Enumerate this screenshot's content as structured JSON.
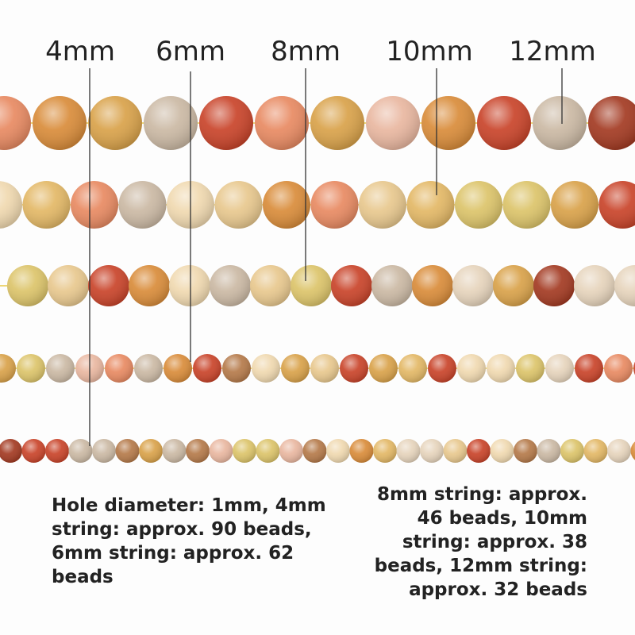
{
  "labels": [
    "4mm",
    "6mm",
    "8mm",
    "10mm",
    "12mm"
  ],
  "notes": {
    "left": "Hole diameter: 1mm, 4mm string: approx. 90 beads, 6mm string: approx. 62 beads",
    "right": "8mm string: approx. 46 beads, 10mm string: approx. 38 beads, 12mm string: approx. 32 beads"
  }
}
